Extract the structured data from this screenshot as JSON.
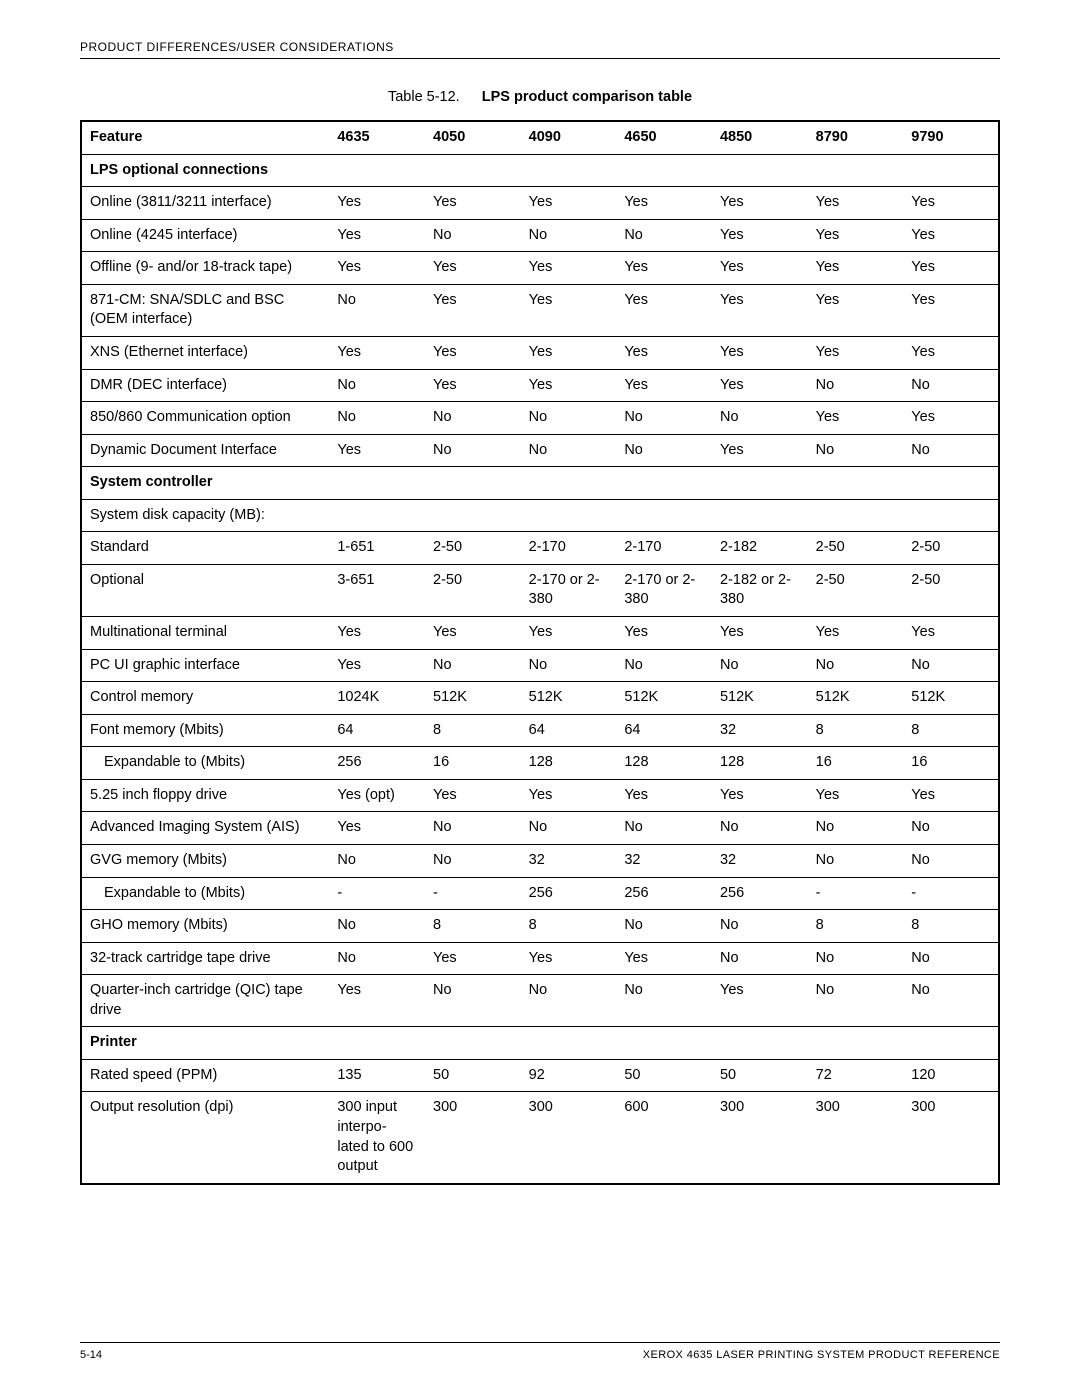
{
  "header": "PRODUCT DIFFERENCES/USER CONSIDERATIONS",
  "caption_num": "Table 5-12.",
  "caption_title": "LPS product comparison table",
  "columns": [
    "Feature",
    "4635",
    "4050",
    "4090",
    "4650",
    "4850",
    "8790",
    "9790"
  ],
  "sections": [
    {
      "title": "LPS optional connections",
      "rows": [
        {
          "label": "Online (3811/3211 interface)",
          "vals": [
            "Yes",
            "Yes",
            "Yes",
            "Yes",
            "Yes",
            "Yes",
            "Yes"
          ]
        },
        {
          "label": "Online (4245 interface)",
          "vals": [
            "Yes",
            "No",
            "No",
            "No",
            "Yes",
            "Yes",
            "Yes"
          ]
        },
        {
          "label": "Offline (9- and/or 18-track tape)",
          "vals": [
            "Yes",
            "Yes",
            "Yes",
            "Yes",
            "Yes",
            "Yes",
            "Yes"
          ]
        },
        {
          "label": "871-CM: SNA/SDLC and BSC (OEM interface)",
          "vals": [
            "No",
            "Yes",
            "Yes",
            "Yes",
            "Yes",
            "Yes",
            "Yes"
          ]
        },
        {
          "label": "XNS (Ethernet interface)",
          "vals": [
            "Yes",
            "Yes",
            "Yes",
            "Yes",
            "Yes",
            "Yes",
            "Yes"
          ]
        },
        {
          "label": "DMR (DEC interface)",
          "vals": [
            "No",
            "Yes",
            "Yes",
            "Yes",
            "Yes",
            "No",
            "No"
          ]
        },
        {
          "label": "850/860 Communication option",
          "vals": [
            "No",
            "No",
            "No",
            "No",
            "No",
            "Yes",
            "Yes"
          ]
        },
        {
          "label": "Dynamic Document Interface",
          "vals": [
            "Yes",
            "No",
            "No",
            "No",
            "Yes",
            "No",
            "No"
          ]
        }
      ]
    },
    {
      "title": "System controller",
      "rows": [
        {
          "label": "System disk capacity (MB):",
          "vals": [
            "",
            "",
            "",
            "",
            "",
            "",
            ""
          ]
        },
        {
          "label": "Standard",
          "vals": [
            "1-651",
            "2-50",
            "2-170",
            "2-170",
            "2-182",
            "2-50",
            "2-50"
          ]
        },
        {
          "label": "Optional",
          "vals": [
            "3-651",
            "2-50",
            "2-170 or 2-380",
            "2-170 or 2-380",
            "2-182 or 2-380",
            "2-50",
            "2-50"
          ]
        },
        {
          "label": "Multinational terminal",
          "vals": [
            "Yes",
            "Yes",
            "Yes",
            "Yes",
            "Yes",
            "Yes",
            "Yes"
          ]
        },
        {
          "label": "PC UI graphic interface",
          "vals": [
            "Yes",
            "No",
            "No",
            "No",
            "No",
            "No",
            "No"
          ]
        },
        {
          "label": "Control memory",
          "vals": [
            "1024K",
            "512K",
            "512K",
            "512K",
            "512K",
            "512K",
            "512K"
          ]
        },
        {
          "label": "Font memory (Mbits)",
          "vals": [
            "64",
            "8",
            "64",
            "64",
            "32",
            "8",
            "8"
          ]
        },
        {
          "label": "Expandable to (Mbits)",
          "indent": true,
          "vals": [
            "256",
            "16",
            "128",
            "128",
            "128",
            "16",
            "16"
          ]
        },
        {
          "label": "5.25 inch floppy drive",
          "vals": [
            "Yes (opt)",
            "Yes",
            "Yes",
            "Yes",
            "Yes",
            "Yes",
            "Yes"
          ]
        },
        {
          "label": "Advanced Imaging System (AIS)",
          "vals": [
            "Yes",
            "No",
            "No",
            "No",
            "No",
            "No",
            "No"
          ]
        },
        {
          "label": "GVG memory (Mbits)",
          "vals": [
            "No",
            "No",
            "32",
            "32",
            "32",
            "No",
            "No"
          ]
        },
        {
          "label": "Expandable to (Mbits)",
          "indent": true,
          "vals": [
            "-",
            "-",
            "256",
            "256",
            "256",
            "-",
            "-"
          ]
        },
        {
          "label": "GHO memory (Mbits)",
          "vals": [
            "No",
            "8",
            "8",
            "No",
            "No",
            "8",
            "8"
          ]
        },
        {
          "label": "32-track cartridge tape drive",
          "vals": [
            "No",
            "Yes",
            "Yes",
            "Yes",
            "No",
            "No",
            "No"
          ]
        },
        {
          "label": "Quarter-inch cartridge (QIC) tape drive",
          "vals": [
            "Yes",
            "No",
            "No",
            "No",
            "Yes",
            "No",
            "No"
          ]
        }
      ]
    },
    {
      "title": "Printer",
      "rows": [
        {
          "label": "Rated speed (PPM)",
          "vals": [
            "135",
            "50",
            "92",
            "50",
            "50",
            "72",
            "120"
          ]
        },
        {
          "label": "Output resolution (dpi)",
          "vals": [
            "300 input interpo-lated to 600 output",
            "300",
            "300",
            "600",
            "300",
            "300",
            "300"
          ]
        }
      ]
    }
  ],
  "footer_left": "5-14",
  "footer_right": "XEROX 4635 LASER PRINTING SYSTEM PRODUCT REFERENCE"
}
